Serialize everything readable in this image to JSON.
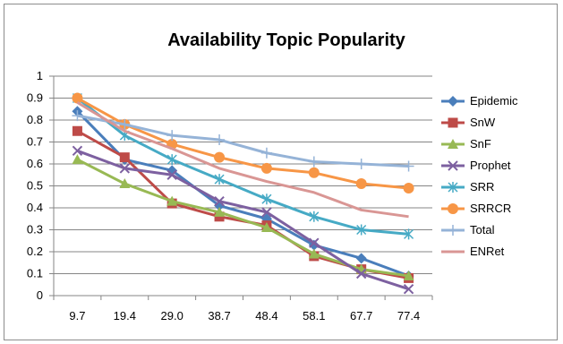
{
  "chart_data": {
    "type": "line",
    "title": "Availability Topic Popularity",
    "xlabel": "",
    "ylabel": "",
    "categories": [
      "9.7",
      "19.4",
      "29.0",
      "38.7",
      "48.4",
      "58.1",
      "67.7",
      "77.4"
    ],
    "ylim": [
      0,
      1
    ],
    "yticks": [
      "0",
      "0.1",
      "0.2",
      "0.3",
      "0.4",
      "0.5",
      "0.6",
      "0.7",
      "0.8",
      "0.9",
      "1"
    ],
    "grid": "horizontal",
    "legend": "right",
    "series": [
      {
        "name": "Epidemic",
        "color": "#4a7ebb",
        "marker": "diamond",
        "values": [
          0.84,
          0.62,
          0.57,
          0.41,
          0.35,
          0.23,
          0.17,
          0.09
        ]
      },
      {
        "name": "SnW",
        "color": "#be4b48",
        "marker": "square",
        "values": [
          0.75,
          0.63,
          0.42,
          0.36,
          0.32,
          0.18,
          0.12,
          0.08
        ]
      },
      {
        "name": "SnF",
        "color": "#98b954",
        "marker": "triangle",
        "values": [
          0.62,
          0.51,
          0.43,
          0.38,
          0.31,
          0.19,
          0.12,
          0.09
        ]
      },
      {
        "name": "Prophet",
        "color": "#7d60a0",
        "marker": "x",
        "values": [
          0.66,
          0.58,
          0.55,
          0.43,
          0.38,
          0.24,
          0.1,
          0.03
        ]
      },
      {
        "name": "SRR",
        "color": "#46aac5",
        "marker": "star",
        "values": [
          0.9,
          0.73,
          0.62,
          0.53,
          0.44,
          0.36,
          0.3,
          0.28
        ]
      },
      {
        "name": "SRRCR",
        "color": "#f79646",
        "marker": "circle",
        "values": [
          0.9,
          0.78,
          0.69,
          0.63,
          0.58,
          0.56,
          0.51,
          0.49
        ]
      },
      {
        "name": "Total",
        "color": "#95b3d7",
        "marker": "plus",
        "values": [
          0.82,
          0.78,
          0.73,
          0.71,
          0.65,
          0.61,
          0.6,
          0.59
        ]
      },
      {
        "name": "ENRet",
        "color": "#d99694",
        "marker": "none",
        "values": [
          0.88,
          0.75,
          0.67,
          0.58,
          0.52,
          0.47,
          0.39,
          0.36
        ]
      }
    ]
  }
}
